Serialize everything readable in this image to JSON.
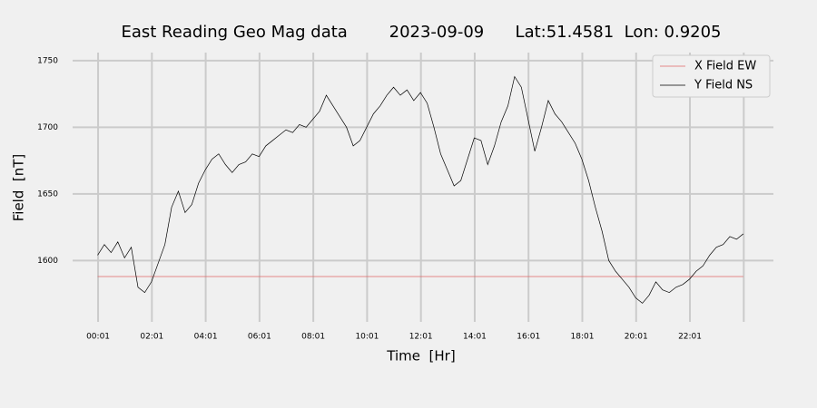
{
  "chart_data": {
    "type": "line",
    "title": "East Reading Geo Mag data        2023-09-09      Lat:51.4581  Lon: 0.9205",
    "x_label": "Time  [Hr]",
    "y_label": "Field  [nT]",
    "xlim": [
      -0.93,
      25.12
    ],
    "ylim": [
      1554,
      1756
    ],
    "xticks": [
      {
        "value": 0.0167,
        "label": "00:01"
      },
      {
        "value": 2.0167,
        "label": "02:01"
      },
      {
        "value": 4.0167,
        "label": "04:01"
      },
      {
        "value": 6.0167,
        "label": "06:01"
      },
      {
        "value": 8.0167,
        "label": "08:01"
      },
      {
        "value": 10.0167,
        "label": "10:01"
      },
      {
        "value": 12.0167,
        "label": "12:01"
      },
      {
        "value": 14.0167,
        "label": "14:01"
      },
      {
        "value": 16.0167,
        "label": "16:01"
      },
      {
        "value": 18.0167,
        "label": "18:01"
      },
      {
        "value": 20.0167,
        "label": "20:01"
      },
      {
        "value": 22.0167,
        "label": "22:01"
      },
      {
        "value": 24.0167,
        "label": null
      }
    ],
    "yticks": [
      1600,
      1650,
      1700,
      1750
    ],
    "grid": true,
    "legend": "upper right",
    "series": [
      {
        "name": "X Field EW",
        "color": "#e06666",
        "x": [
          0,
          24
        ],
        "values": [
          1588,
          1588
        ]
      },
      {
        "name": "Y Field NS",
        "color": "#000000",
        "x": [
          0,
          0.25,
          0.5,
          0.75,
          1,
          1.25,
          1.5,
          1.75,
          2,
          2.25,
          2.5,
          2.75,
          3,
          3.25,
          3.5,
          3.75,
          4,
          4.25,
          4.5,
          4.75,
          5,
          5.25,
          5.5,
          5.75,
          6,
          6.25,
          6.5,
          6.75,
          7,
          7.25,
          7.5,
          7.75,
          8,
          8.25,
          8.5,
          8.75,
          9,
          9.25,
          9.5,
          9.75,
          10,
          10.25,
          10.5,
          10.75,
          11,
          11.25,
          11.5,
          11.75,
          12,
          12.25,
          12.5,
          12.75,
          13,
          13.25,
          13.5,
          13.75,
          14,
          14.25,
          14.5,
          14.75,
          15,
          15.25,
          15.5,
          15.75,
          16,
          16.25,
          16.5,
          16.75,
          17,
          17.25,
          17.5,
          17.75,
          18,
          18.25,
          18.5,
          18.75,
          19,
          19.25,
          19.5,
          19.75,
          20,
          20.25,
          20.5,
          20.75,
          21,
          21.25,
          21.5,
          21.75,
          22,
          22.25,
          22.5,
          22.75,
          23,
          23.25,
          23.5,
          23.75,
          24
        ],
        "values": [
          1604,
          1612,
          1606,
          1614,
          1602,
          1610,
          1580,
          1576,
          1584,
          1598,
          1612,
          1640,
          1652,
          1636,
          1642,
          1658,
          1668,
          1676,
          1680,
          1672,
          1666,
          1672,
          1674,
          1680,
          1678,
          1686,
          1690,
          1694,
          1698,
          1696,
          1702,
          1700,
          1706,
          1712,
          1724,
          1716,
          1708,
          1700,
          1686,
          1690,
          1700,
          1710,
          1716,
          1724,
          1730,
          1724,
          1728,
          1720,
          1726,
          1718,
          1700,
          1680,
          1668,
          1656,
          1660,
          1676,
          1692,
          1690,
          1672,
          1686,
          1704,
          1716,
          1738,
          1730,
          1706,
          1682,
          1700,
          1720,
          1710,
          1704,
          1696,
          1688,
          1676,
          1660,
          1640,
          1622,
          1600,
          1592,
          1586,
          1580,
          1572,
          1568,
          1574,
          1584,
          1578,
          1576,
          1580,
          1582,
          1586,
          1592,
          1596,
          1604,
          1610,
          1612,
          1618,
          1616,
          1620
        ]
      }
    ]
  }
}
